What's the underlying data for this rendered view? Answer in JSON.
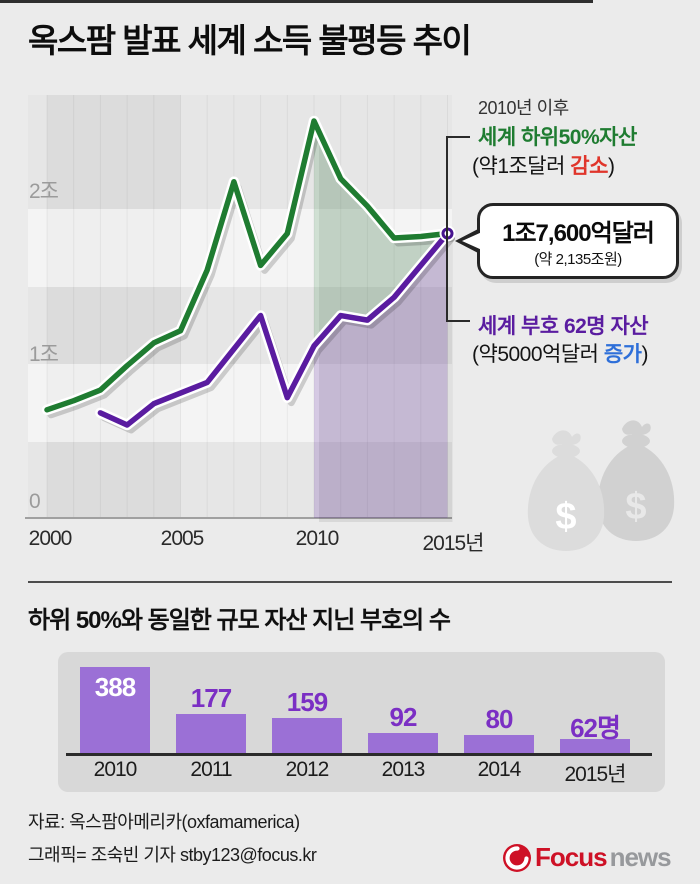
{
  "title": "옥스팜 발표 세계 소득 불평등 추이",
  "colors": {
    "page_bg": "#ebebeb",
    "green_line": "#1f7c31",
    "purple_line": "#5a1ca0",
    "decrease_red": "#e0352b",
    "increase_blue": "#2e6fd9",
    "bar_fill": "#9b70d6",
    "bar_value_label": "#7b2fc4",
    "logo_red": "#ce1126",
    "logo_gray": "#97999c"
  },
  "line_annotations": {
    "period": "2010년 이후",
    "green_label": "세계 하위50%자산",
    "green_sub_prefix": "(약1조달러 ",
    "green_sub_highlight": "감소",
    "green_sub_suffix": ")",
    "purple_label": "세계 부호 62명 자산",
    "purple_sub_prefix": "(약5000억달러 ",
    "purple_sub_highlight": "증가",
    "purple_sub_suffix": ")"
  },
  "chart_data": [
    {
      "type": "line",
      "title": "옥스팜 발표 세계 소득 불평등 추이",
      "unit": "조 달러",
      "ylim": [
        0,
        2.75
      ],
      "yticks": [
        "2조",
        "1조",
        "0"
      ],
      "ytick_values": [
        2,
        1,
        0
      ],
      "xticks": [
        "2000",
        "2005",
        "2010",
        "2015년"
      ],
      "x_range": [
        2000,
        2015
      ],
      "grid": "subtle-vertical-year-bands",
      "highlight_from_year": 2010,
      "series": [
        {
          "name": "세계 하위50%자산",
          "color": "#1f7c31",
          "start_year": 2000,
          "values": [
            0.6,
            0.66,
            0.73,
            0.89,
            1.04,
            1.12,
            1.52,
            2.1,
            1.55,
            1.76,
            2.5,
            2.12,
            1.94,
            1.73,
            1.74,
            1.76
          ]
        },
        {
          "name": "세계 부호 62명 자산",
          "color": "#5a1ca0",
          "start_year": 2002,
          "values": [
            0.58,
            0.5,
            0.64,
            0.71,
            0.78,
            1.0,
            1.22,
            0.68,
            1.02,
            1.22,
            1.19,
            1.34,
            1.55,
            1.76
          ]
        }
      ],
      "end_point": {
        "year": 2015,
        "value_label": "1조7,600억달러",
        "value_sub": "(약 2,135조원)"
      }
    },
    {
      "type": "bar",
      "title": "하위 50%와 동일한 규모 자산 지닌 부호의 수",
      "categories": [
        "2010",
        "2011",
        "2012",
        "2013",
        "2014",
        "2015년"
      ],
      "values": [
        388,
        177,
        159,
        92,
        80,
        62
      ],
      "display_labels": [
        "388",
        "177",
        "159",
        "92",
        "80",
        "62명"
      ],
      "bar_color": "#9b70d6",
      "grid": false,
      "ylim": [
        0,
        400
      ]
    }
  ],
  "footer": {
    "source": "자료: 옥스팜아메리카(oxfamamerica)",
    "credit": "그래픽= 조숙빈 기자 stby123@focus.kr",
    "logo_focus": "Focus",
    "logo_news": "news"
  }
}
